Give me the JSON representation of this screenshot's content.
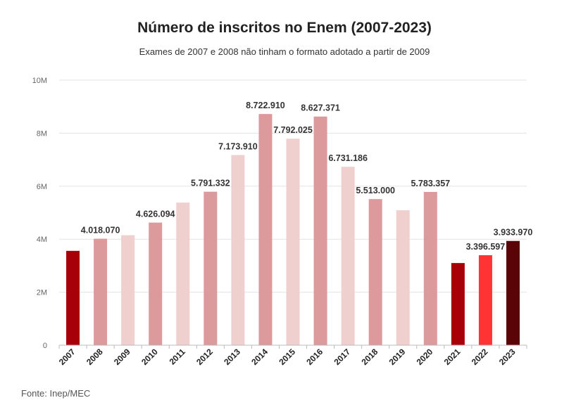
{
  "chart_data": {
    "type": "bar",
    "title": "Número de inscritos no Enem (2007-2023)",
    "subtitle": "Exames de 2007 e 2008 não tinham o formato adotado a partir de 2009",
    "source": "Fonte: Inep/MEC",
    "ylim": [
      0,
      10000000
    ],
    "yticks": [
      {
        "value": 0,
        "label": "0"
      },
      {
        "value": 2000000,
        "label": "2M"
      },
      {
        "value": 4000000,
        "label": "4M"
      },
      {
        "value": 6000000,
        "label": "6M"
      },
      {
        "value": 8000000,
        "label": "8M"
      },
      {
        "value": 10000000,
        "label": "10M"
      }
    ],
    "grid": true,
    "bars": [
      {
        "category": "2007",
        "value": 3560000,
        "label": "",
        "color": "#a80008"
      },
      {
        "category": "2008",
        "value": 4018070,
        "label": "4.018.070",
        "color": "#dd9a9c"
      },
      {
        "category": "2009",
        "value": 4150000,
        "label": "",
        "color": "#f0cfcf"
      },
      {
        "category": "2010",
        "value": 4626094,
        "label": "4.626.094",
        "color": "#dd9a9c"
      },
      {
        "category": "2011",
        "value": 5380000,
        "label": "",
        "color": "#f0cfcf"
      },
      {
        "category": "2012",
        "value": 5791332,
        "label": "5.791.332",
        "color": "#dd9a9c"
      },
      {
        "category": "2013",
        "value": 7173910,
        "label": "7.173.910",
        "color": "#f0cfcf"
      },
      {
        "category": "2014",
        "value": 8722910,
        "label": "8.722.910",
        "color": "#dd9a9c"
      },
      {
        "category": "2015",
        "value": 7792025,
        "label": "7.792.025",
        "color": "#f0cfcf"
      },
      {
        "category": "2016",
        "value": 8627371,
        "label": "8.627.371",
        "color": "#dd9a9c"
      },
      {
        "category": "2017",
        "value": 6731186,
        "label": "6.731.186",
        "color": "#f0cfcf"
      },
      {
        "category": "2018",
        "value": 5513000,
        "label": "5.513.000",
        "color": "#dd9a9c"
      },
      {
        "category": "2019",
        "value": 5090000,
        "label": "",
        "color": "#f0cfcf"
      },
      {
        "category": "2020",
        "value": 5783357,
        "label": "5.783.357",
        "color": "#dd9a9c"
      },
      {
        "category": "2021",
        "value": 3100000,
        "label": "",
        "color": "#a80008"
      },
      {
        "category": "2022",
        "value": 3396597,
        "label": "3.396.597",
        "color": "#ff3333"
      },
      {
        "category": "2023",
        "value": 3933970,
        "label": "3.933.970",
        "color": "#5a0408"
      }
    ]
  }
}
